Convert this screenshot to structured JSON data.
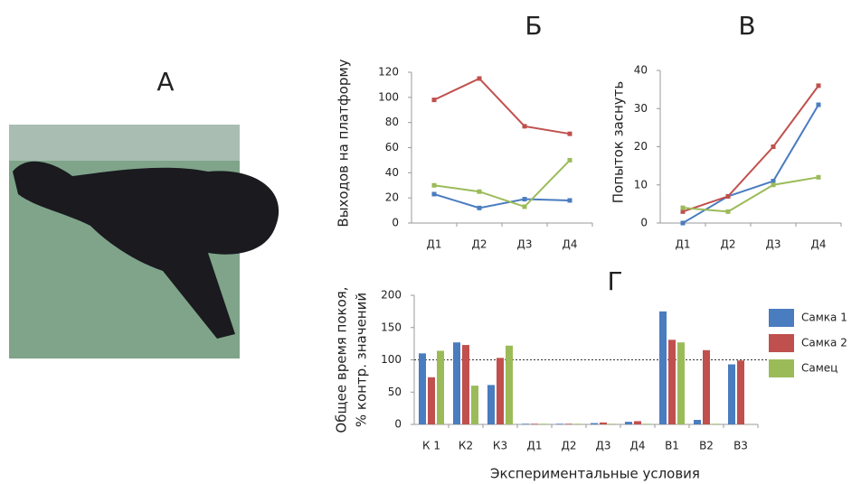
{
  "photo": {
    "label": "А"
  },
  "chart_data": [
    {
      "type": "line",
      "title": "Б",
      "y_label": "Выходов на платформу",
      "categories": [
        "Д1",
        "Д2",
        "Д3",
        "Д4"
      ],
      "series": [
        {
          "color": "#4a7cc0",
          "values": [
            23,
            12,
            19,
            18
          ]
        },
        {
          "color": "#c0504d",
          "values": [
            98,
            115,
            77,
            71
          ]
        },
        {
          "color": "#9bbb59",
          "values": [
            30,
            25,
            13,
            50
          ]
        }
      ],
      "ylim": [
        0,
        120
      ],
      "yticks": [
        0,
        20,
        40,
        60,
        80,
        100,
        120
      ]
    },
    {
      "type": "line",
      "title": "В",
      "y_label": "Попыток заснуть",
      "categories": [
        "Д1",
        "Д2",
        "Д3",
        "Д4"
      ],
      "series": [
        {
          "color": "#4a7cc0",
          "values": [
            0,
            7,
            11,
            31
          ]
        },
        {
          "color": "#c0504d",
          "values": [
            3,
            7,
            20,
            36
          ]
        },
        {
          "color": "#9bbb59",
          "values": [
            4,
            3,
            10,
            12
          ]
        }
      ],
      "ylim": [
        0,
        40
      ],
      "yticks": [
        0,
        10,
        20,
        30,
        40
      ]
    },
    {
      "type": "bar",
      "title": "Г",
      "y_label": [
        "Общее время покоя,",
        "% контр. значений"
      ],
      "x_label": "Экспериментальные условия",
      "categories": [
        "К 1",
        "К2",
        "К3",
        "Д1",
        "Д2",
        "Д3",
        "Д4",
        "В1",
        "В2",
        "В3"
      ],
      "series": [
        {
          "name": "Самка 1",
          "color": "#4a7cc0",
          "values": [
            110,
            127,
            61,
            1,
            1,
            2,
            4,
            175,
            7,
            93
          ]
        },
        {
          "name": "Самка 2",
          "color": "#c0504d",
          "values": [
            73,
            123,
            103,
            1,
            1,
            3,
            5,
            131,
            115,
            99
          ]
        },
        {
          "name": "Самец",
          "color": "#9bbb59",
          "values": [
            114,
            60,
            122,
            1,
            1,
            1,
            1,
            127,
            1,
            null
          ]
        }
      ],
      "ylim": [
        0,
        200
      ],
      "yticks": [
        0,
        50,
        100,
        150,
        200
      ],
      "reference_line": 100,
      "legend": "right"
    }
  ]
}
